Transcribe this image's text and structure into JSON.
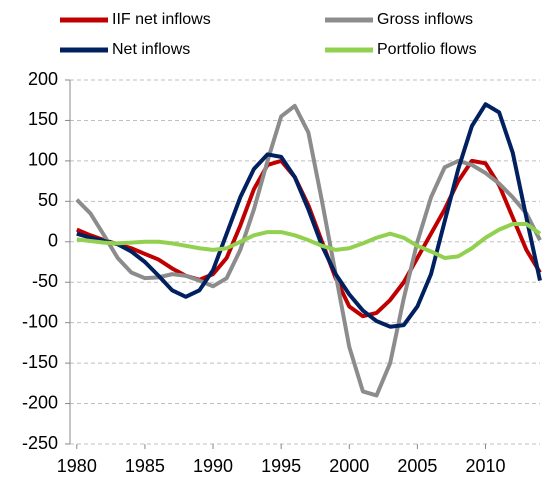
{
  "chart_data": {
    "type": "line",
    "x": [
      1980,
      1981,
      1982,
      1983,
      1984,
      1985,
      1986,
      1987,
      1988,
      1989,
      1990,
      1991,
      1992,
      1993,
      1994,
      1995,
      1996,
      1997,
      1998,
      1999,
      2000,
      2001,
      2002,
      2003,
      2004,
      2005,
      2006,
      2007,
      2008,
      2009,
      2010,
      2011,
      2012,
      2013,
      2014
    ],
    "series": [
      {
        "name": "IIF net inflows",
        "color": "#c00000",
        "values": [
          15,
          8,
          2,
          -3,
          -8,
          -15,
          -22,
          -33,
          -42,
          -47,
          -40,
          -20,
          20,
          65,
          95,
          100,
          80,
          45,
          0,
          -45,
          -80,
          -92,
          -88,
          -72,
          -50,
          -20,
          10,
          40,
          75,
          100,
          97,
          70,
          30,
          -10,
          -38
        ]
      },
      {
        "name": "Gross inflows",
        "color": "#8c8c8c",
        "values": [
          52,
          35,
          8,
          -20,
          -38,
          -45,
          -44,
          -40,
          -42,
          -48,
          -55,
          -45,
          -10,
          40,
          100,
          155,
          168,
          135,
          50,
          -40,
          -130,
          -185,
          -190,
          -150,
          -70,
          0,
          55,
          92,
          100,
          95,
          85,
          72,
          55,
          35,
          2
        ]
      },
      {
        "name": "Net inflows",
        "color": "#002060",
        "values": [
          10,
          5,
          1,
          -3,
          -12,
          -25,
          -42,
          -60,
          -68,
          -60,
          -35,
          10,
          55,
          90,
          108,
          105,
          80,
          40,
          -5,
          -40,
          -65,
          -85,
          -98,
          -105,
          -103,
          -80,
          -40,
          25,
          90,
          143,
          170,
          160,
          110,
          30,
          -48
        ]
      },
      {
        "name": "Portfolio flows",
        "color": "#92d050",
        "values": [
          3,
          1,
          -1,
          -2,
          -1,
          0,
          0,
          -2,
          -5,
          -8,
          -10,
          -8,
          0,
          8,
          12,
          12,
          8,
          2,
          -5,
          -10,
          -8,
          -2,
          5,
          10,
          5,
          -5,
          -12,
          -20,
          -18,
          -8,
          5,
          15,
          22,
          22,
          10
        ]
      }
    ],
    "xlim": [
      1979.5,
      2014
    ],
    "xticks": [
      1980,
      1985,
      1990,
      1995,
      2000,
      2005,
      2010
    ],
    "ylim": [
      -250,
      200
    ],
    "yticks": [
      -250,
      -200,
      -150,
      -100,
      -50,
      0,
      50,
      100,
      150,
      200
    ],
    "grid": true
  }
}
